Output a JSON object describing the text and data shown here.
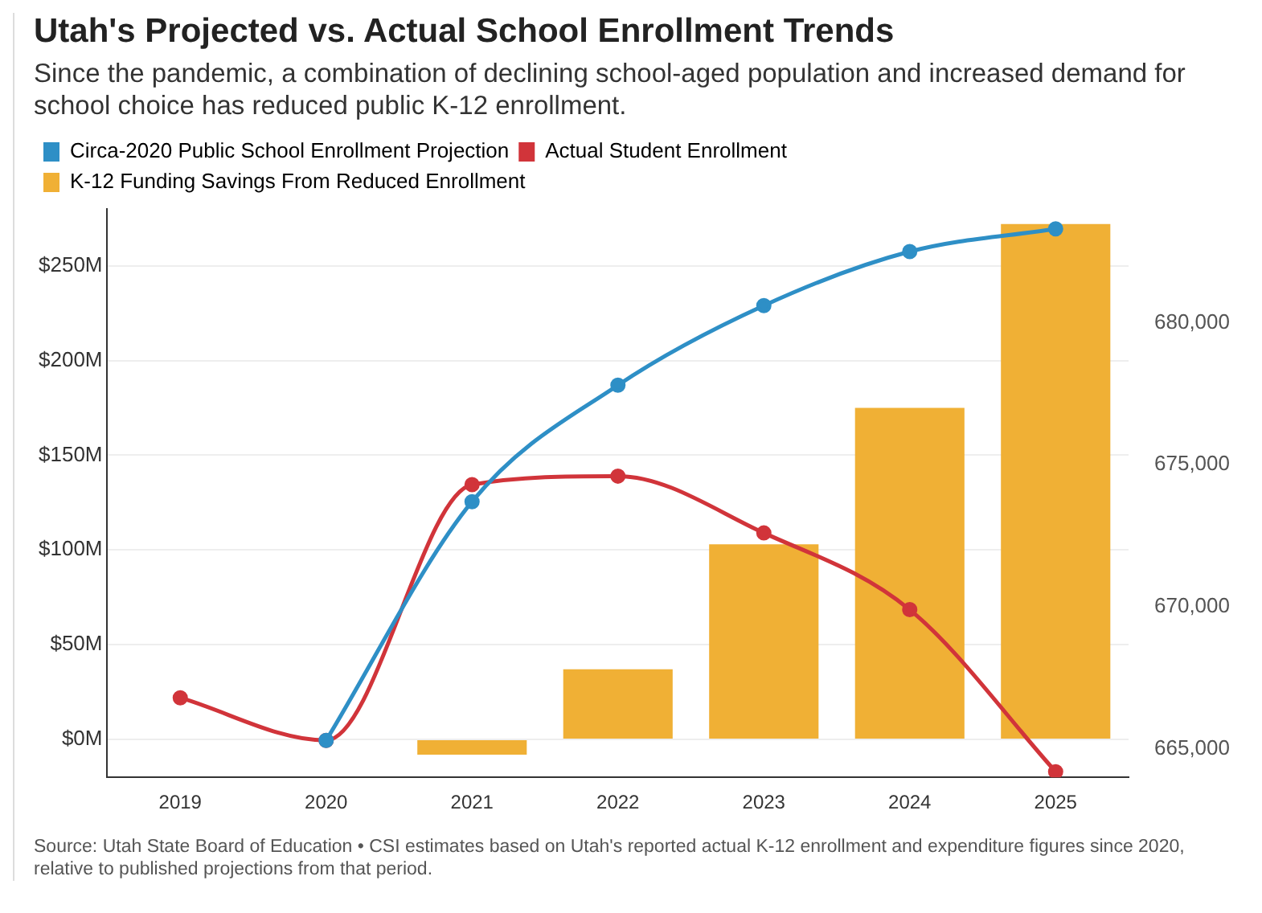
{
  "chart_data": {
    "type": "bar",
    "title": "Utah's Projected vs. Actual School Enrollment Trends",
    "subtitle": "Since the pandemic, a combination of declining school-aged population and increased demand for school choice has reduced public K-12 enrollment.",
    "categories": [
      "2019",
      "2020",
      "2021",
      "2022",
      "2023",
      "2024",
      "2025"
    ],
    "series": [
      {
        "name": "Circa-2020 Public School Enrollment Projection",
        "type": "line",
        "axis": "y2",
        "color": "#2e8fc6",
        "values": [
          null,
          665300,
          673700,
          677800,
          680600,
          682500,
          683300
        ]
      },
      {
        "name": "Actual Student Enrollment",
        "type": "line",
        "axis": "y2",
        "color": "#d1343a",
        "values": [
          666800,
          665300,
          674300,
          674600,
          672600,
          669900,
          664200
        ]
      },
      {
        "name": "K-12 Funding Savings From Reduced Enrollment",
        "color": "#f0b035",
        "values": [
          null,
          null,
          -8,
          37,
          103,
          175,
          272
        ]
      }
    ],
    "ylim": [
      -20,
      280
    ],
    "yticks": [
      {
        "value": 0,
        "label": "$0M"
      },
      {
        "value": 50,
        "label": "$50M"
      },
      {
        "value": 100,
        "label": "$100M"
      },
      {
        "value": 150,
        "label": "$150M"
      },
      {
        "value": 200,
        "label": "$200M"
      },
      {
        "value": 250,
        "label": "$250M"
      }
    ],
    "y2lim": [
      664000,
      684000
    ],
    "y2ticks": [
      {
        "value": 665000,
        "label": "665,000"
      },
      {
        "value": 670000,
        "label": "670,000"
      },
      {
        "value": 675000,
        "label": "675,000"
      },
      {
        "value": 680000,
        "label": "680,000"
      }
    ],
    "grid": "y",
    "legend": "top left",
    "marker": "circle",
    "annotations": [
      "Source: Utah State Board of Education • CSI estimates based on Utah's reported actual K-12 enrollment and expenditure figures since 2020, relative to published projections from that period."
    ]
  }
}
